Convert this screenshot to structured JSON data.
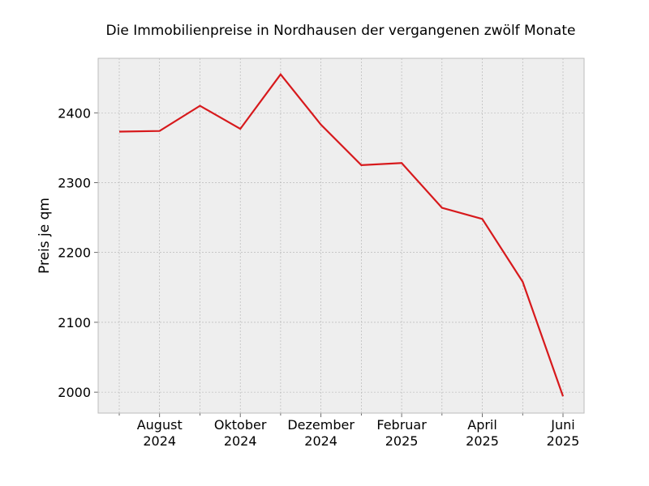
{
  "chart_data": {
    "type": "line",
    "title": "Die Immobilienpreise in Nordhausen der vergangenen zwölf Monate",
    "xlabel": "",
    "ylabel": "Preis je qm",
    "x": [
      "2024-07",
      "2024-08",
      "2024-09",
      "2024-10",
      "2024-11",
      "2024-12",
      "2025-01",
      "2025-02",
      "2025-03",
      "2025-04",
      "2025-05",
      "2025-06"
    ],
    "series": [
      {
        "values": [
          2373,
          2374,
          2410,
          2377,
          2455,
          2383,
          2325,
          2328,
          2264,
          2248,
          2158,
          1994
        ]
      }
    ],
    "xticks": [
      {
        "month": "2024-08",
        "label": [
          "August",
          "2024"
        ]
      },
      {
        "month": "2024-10",
        "label": [
          "Oktober",
          "2024"
        ]
      },
      {
        "month": "2024-12",
        "label": [
          "Dezember",
          "2024"
        ]
      },
      {
        "month": "2025-02",
        "label": [
          "Februar",
          "2025"
        ]
      },
      {
        "month": "2025-04",
        "label": [
          "April",
          "2025"
        ]
      },
      {
        "month": "2025-06",
        "label": [
          "Juni",
          "2025"
        ]
      }
    ],
    "yticks": [
      2000,
      2100,
      2200,
      2300,
      2400
    ],
    "ylim": [
      1970,
      2478
    ],
    "xlim": [
      "2024-07",
      "2025-06"
    ],
    "grid": true,
    "line_color": "#d7191c",
    "plot_background": "#eeeeee",
    "grid_color": "#b0b0b0"
  }
}
